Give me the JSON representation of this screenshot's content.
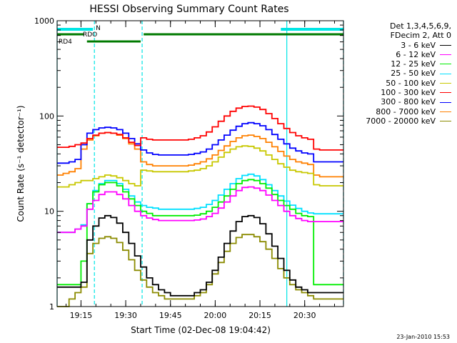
{
  "chart_data": {
    "type": "line",
    "title": "HESSI Observing Summary Count Rates",
    "xlabel": "Start Time (02-Dec-08 19:04:42)",
    "ylabel": "Count Rate (s⁻¹ detector⁻¹)",
    "yscale": "log",
    "ylim": [
      1,
      1000
    ],
    "xlim_minutes_after_19h": [
      7,
      43
    ],
    "grid": false,
    "legend_position": "right-outside",
    "x_ticks": [
      {
        "label": "19:15",
        "value": 15
      },
      {
        "label": "19:30",
        "value": 30
      },
      {
        "label": "19:45",
        "value": 45
      },
      {
        "label": "20:00",
        "value": 60
      },
      {
        "label": "20:15",
        "value": 75
      },
      {
        "label": "20:30",
        "value": 90
      }
    ],
    "y_ticks": [
      {
        "label": "1",
        "value": 1
      },
      {
        "label": "10",
        "value": 10
      },
      {
        "label": "100",
        "value": 100
      },
      {
        "label": "1000",
        "value": 1000
      }
    ],
    "legend_header": [
      "Det 1,3,4,5,6,9,",
      "FDecim 2, Att 0"
    ],
    "time_minutes": [
      7,
      9,
      11,
      13,
      15,
      17,
      19,
      21,
      23,
      25,
      27,
      29,
      31,
      33,
      35,
      37,
      39,
      41,
      43,
      45,
      47,
      49,
      51,
      53,
      55,
      57,
      59,
      61,
      63,
      65,
      67,
      69,
      71,
      73,
      75,
      77,
      79,
      81,
      83,
      85,
      87,
      89,
      91,
      93,
      95,
      97,
      99,
      101,
      103
    ],
    "series": [
      {
        "name": "3 - 6 keV",
        "color": "#000000",
        "values": [
          1.6,
          1.6,
          1.6,
          1.6,
          1.8,
          5,
          7,
          8.5,
          9,
          8.6,
          7.5,
          6,
          4.6,
          3.4,
          2.6,
          2,
          1.7,
          1.5,
          1.4,
          1.3,
          1.3,
          1.3,
          1.3,
          1.4,
          1.5,
          1.8,
          2.4,
          3.3,
          4.6,
          6.2,
          7.8,
          8.8,
          9,
          8.6,
          7.4,
          5.8,
          4.3,
          3.2,
          2.4,
          1.9,
          1.6,
          1.5,
          1.4,
          1.4,
          1.4,
          1.4,
          1.4,
          1.4,
          1.4
        ]
      },
      {
        "name": "6 - 12 keV",
        "color": "#ff00ff",
        "values": [
          6,
          6,
          6,
          6.5,
          7,
          10.5,
          13,
          15,
          16,
          16,
          15,
          13.5,
          11.5,
          10,
          9,
          8.5,
          8.2,
          8,
          8,
          8,
          8,
          8,
          8,
          8.1,
          8.3,
          8.8,
          9.5,
          10.8,
          12.5,
          14.5,
          16.5,
          17.8,
          18,
          17.5,
          16.5,
          14.8,
          13,
          11.5,
          10,
          9,
          8.4,
          8,
          7.8,
          7.8,
          7.8,
          7.8,
          7.8,
          7.8,
          7.8
        ]
      },
      {
        "name": "12 - 25 keV",
        "color": "#00ee00",
        "values": [
          1.7,
          1.7,
          1.7,
          1.7,
          3,
          12,
          16,
          19,
          20,
          20,
          18.5,
          16,
          13.5,
          11.5,
          10,
          9.5,
          9,
          9,
          9,
          9,
          9,
          9,
          9,
          9.1,
          9.4,
          10,
          11,
          12.5,
          14.5,
          17,
          19.5,
          21,
          21.5,
          21,
          19.5,
          17.5,
          15,
          13,
          11.5,
          10.5,
          9.5,
          9,
          8.8,
          1.7,
          1.7,
          1.7,
          1.7,
          1.7,
          1.7
        ]
      },
      {
        "name": "25 - 50 keV",
        "color": "#00e0ff",
        "values": [
          6,
          6,
          6,
          6.5,
          7.2,
          12,
          16.5,
          19.5,
          21,
          21,
          19.5,
          17,
          14.5,
          12.5,
          11.5,
          11,
          10.8,
          10.5,
          10.5,
          10.5,
          10.5,
          10.5,
          10.5,
          10.7,
          11,
          11.8,
          13,
          14.8,
          17,
          19.5,
          22,
          23.8,
          24.5,
          23.5,
          21.5,
          19,
          16.5,
          14.5,
          12.8,
          11.6,
          10.7,
          10,
          9.6,
          9.4,
          9.4,
          9.4,
          9.4,
          9.4,
          9.4
        ]
      },
      {
        "name": "50 - 100 keV",
        "color": "#c8c800",
        "values": [
          18,
          18,
          19,
          20,
          21,
          21,
          22,
          23,
          24,
          23.5,
          22.5,
          21,
          19.5,
          18.5,
          27,
          26.5,
          26,
          26,
          26,
          26,
          26,
          26,
          26.5,
          27,
          28,
          30,
          33,
          37,
          41.5,
          45,
          47.5,
          48.5,
          48,
          46,
          43,
          39,
          35,
          31.5,
          29,
          27,
          26,
          25.5,
          25,
          19,
          18.5,
          18.5,
          18.5,
          18.5,
          18.5
        ]
      },
      {
        "name": "100 - 300 keV",
        "color": "#ff0000",
        "values": [
          47,
          47,
          48,
          50,
          52,
          58,
          63,
          66,
          67,
          66,
          64,
          59,
          53,
          49,
          59,
          57,
          56,
          56,
          56,
          56,
          56,
          56,
          57,
          59,
          62,
          68,
          77,
          88,
          100,
          112,
          121,
          126,
          127,
          124,
          117,
          106,
          94,
          83,
          74,
          67,
          62,
          59,
          57,
          45,
          44,
          44,
          44,
          44,
          44
        ]
      },
      {
        "name": "300 - 800 keV",
        "color": "#0000ff",
        "values": [
          32,
          32,
          33,
          35,
          50,
          66,
          72,
          75,
          76,
          75,
          72,
          66,
          58,
          51,
          44,
          41,
          39.5,
          39,
          39,
          39,
          39,
          39,
          39.5,
          40.5,
          42,
          45,
          50,
          56,
          63,
          71,
          78,
          83,
          85,
          83,
          79,
          72,
          64,
          57,
          51,
          46,
          43,
          41,
          40,
          33,
          33,
          33,
          33,
          33,
          33
        ]
      },
      {
        "name": "800 - 7000 keV",
        "color": "#ff8000",
        "values": [
          24,
          25,
          26,
          28,
          45,
          56,
          62,
          66,
          67,
          66,
          63,
          58,
          51,
          45,
          33,
          31,
          30,
          30,
          30,
          30,
          30,
          30,
          30.5,
          31.5,
          33,
          35.5,
          39,
          43.5,
          48.5,
          54,
          59,
          62,
          63,
          61,
          58,
          53,
          47.5,
          42.5,
          38,
          35,
          33,
          32,
          31,
          24,
          23,
          23,
          23,
          23,
          23
        ]
      },
      {
        "name": "7000 - 20000 keV",
        "color": "#8b8b00",
        "values": [
          1,
          1,
          1.2,
          1.4,
          1.6,
          3.6,
          4.6,
          5.2,
          5.4,
          5.2,
          4.7,
          3.9,
          3.1,
          2.4,
          1.9,
          1.6,
          1.4,
          1.3,
          1.2,
          1.2,
          1.2,
          1.2,
          1.2,
          1.3,
          1.4,
          1.7,
          2.2,
          2.9,
          3.8,
          4.6,
          5.3,
          5.7,
          5.7,
          5.4,
          4.8,
          4,
          3.2,
          2.5,
          2,
          1.7,
          1.5,
          1.4,
          1.3,
          1.2,
          1.2,
          1.2,
          1.2,
          1.2,
          1.2
        ]
      }
    ],
    "annotations": {
      "cyan_bar_label": "N",
      "green_bar_labels": [
        "RDO",
        "RD4"
      ],
      "cyan_bars": [
        {
          "from": 7,
          "to": 19
        },
        {
          "from": 82,
          "to": 103
        }
      ],
      "green_bars": [
        {
          "from": 7,
          "to": 16
        },
        {
          "from": 36,
          "to": 103
        }
      ],
      "green_bars_low": [
        {
          "from": 17,
          "to": 35
        }
      ],
      "cyan_solid_lines": [
        7,
        84
      ],
      "cyan_dashed_lines": [
        19.5,
        35.5,
        103
      ]
    }
  },
  "footer": {
    "datestamp": "23-Jan-2010 15:53"
  }
}
